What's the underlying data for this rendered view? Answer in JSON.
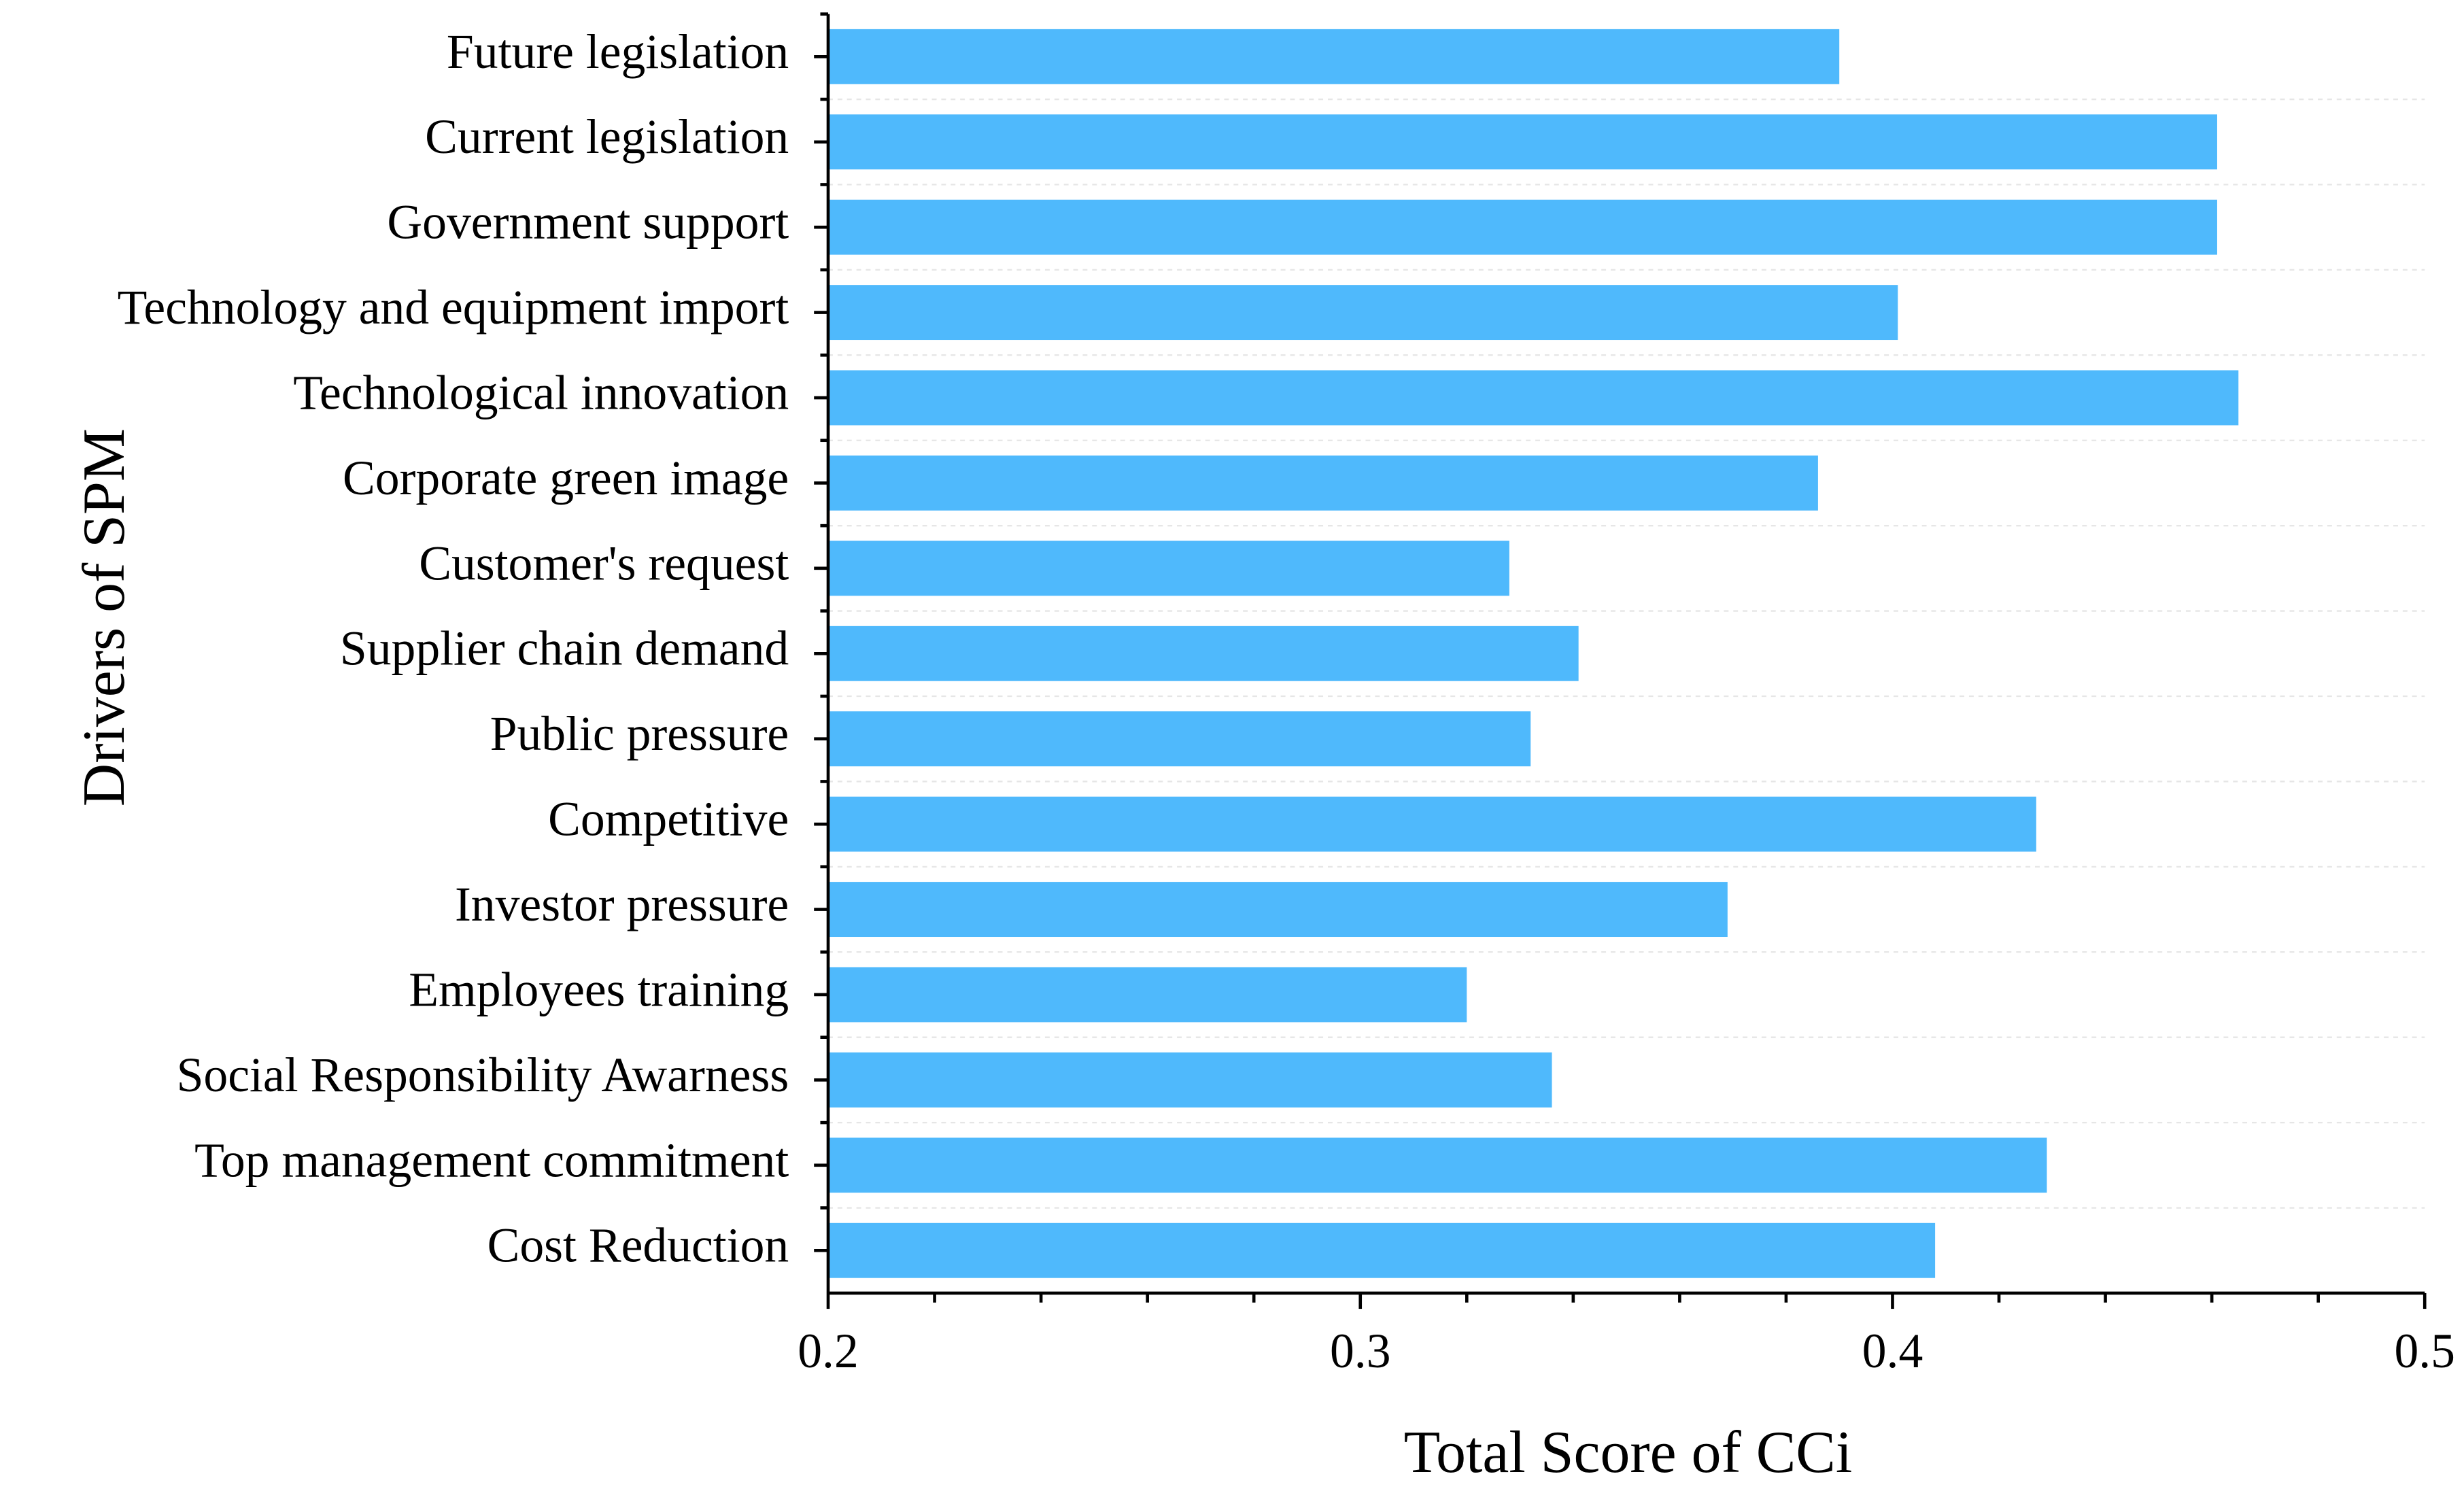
{
  "chart_data": {
    "type": "hbar",
    "x_label": "Total Score of CCi",
    "y_label": "Drivers of SPM",
    "categories": [
      "Future legislation",
      "Current legislation",
      "Government support",
      "Technology and equipment import",
      "Technological innovation",
      "Corporate green image",
      "Customer's request",
      "Supplier chain demand",
      "Public pressure",
      "Competitive",
      "Investor pressure",
      "Employees training",
      "Social Responsibility Awarness",
      "Top management commitment",
      "Cost Reduction"
    ],
    "values": [
      0.39,
      0.461,
      0.461,
      0.401,
      0.465,
      0.386,
      0.328,
      0.341,
      0.332,
      0.427,
      0.369,
      0.32,
      0.336,
      0.429,
      0.408
    ],
    "color": "#4fb9fc",
    "xlim": [
      0.2,
      0.5
    ],
    "xticks": [
      0.2,
      0.3,
      0.4,
      0.5
    ]
  }
}
